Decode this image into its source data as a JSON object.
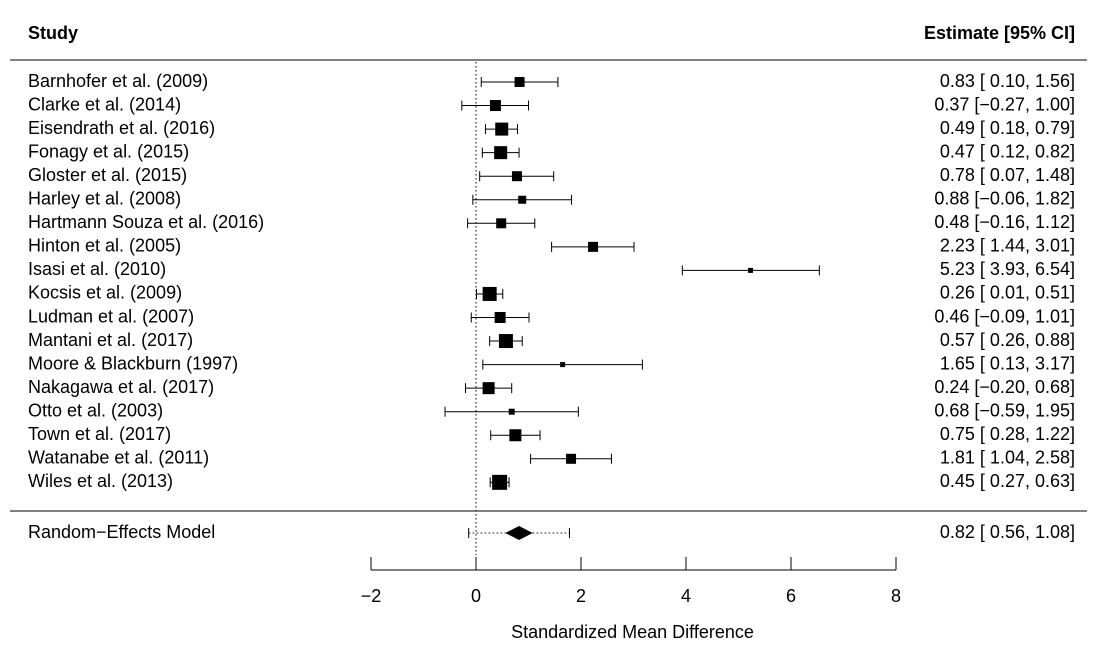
{
  "chart_data": {
    "type": "forest",
    "header": {
      "study": "Study",
      "estimate": "Estimate [95% CI]"
    },
    "xlabel": "Standardized Mean Difference",
    "xlim": [
      -2,
      8
    ],
    "xticks": [
      -2,
      0,
      2,
      4,
      6,
      8
    ],
    "xtick_labels": [
      "−2",
      "0",
      "2",
      "4",
      "6",
      "8"
    ],
    "reference_line": 0,
    "studies": [
      {
        "name": "Barnhofer et al. (2009)",
        "estimate": 0.83,
        "lower": 0.1,
        "upper": 1.56,
        "label": "0.83 [ 0.10, 1.56]",
        "marker_size": 10
      },
      {
        "name": "Clarke et al. (2014)",
        "estimate": 0.37,
        "lower": -0.27,
        "upper": 1.0,
        "label": "0.37 [−0.27, 1.00]",
        "marker_size": 11
      },
      {
        "name": "Eisendrath et al. (2016)",
        "estimate": 0.49,
        "lower": 0.18,
        "upper": 0.79,
        "label": "0.49 [ 0.18, 0.79]",
        "marker_size": 13
      },
      {
        "name": "Fonagy et al. (2015)",
        "estimate": 0.47,
        "lower": 0.12,
        "upper": 0.82,
        "label": "0.47 [ 0.12, 0.82]",
        "marker_size": 13
      },
      {
        "name": "Gloster et al. (2015)",
        "estimate": 0.78,
        "lower": 0.07,
        "upper": 1.48,
        "label": "0.78 [ 0.07, 1.48]",
        "marker_size": 10
      },
      {
        "name": "Harley et al. (2008)",
        "estimate": 0.88,
        "lower": -0.06,
        "upper": 1.82,
        "label": "0.88 [−0.06, 1.82]",
        "marker_size": 8
      },
      {
        "name": "Hartmann Souza et al. (2016)",
        "estimate": 0.48,
        "lower": -0.16,
        "upper": 1.12,
        "label": "0.48 [−0.16, 1.12]",
        "marker_size": 10
      },
      {
        "name": "Hinton et al. (2005)",
        "estimate": 2.23,
        "lower": 1.44,
        "upper": 3.01,
        "label": "2.23 [ 1.44, 3.01]",
        "marker_size": 10
      },
      {
        "name": "Isasi et al. (2010)",
        "estimate": 5.23,
        "lower": 3.93,
        "upper": 6.54,
        "label": "5.23 [ 3.93, 6.54]",
        "marker_size": 5
      },
      {
        "name": "Kocsis et al. (2009)",
        "estimate": 0.26,
        "lower": 0.01,
        "upper": 0.51,
        "label": "0.26 [ 0.01, 0.51]",
        "marker_size": 14
      },
      {
        "name": "Ludman et al. (2007)",
        "estimate": 0.46,
        "lower": -0.09,
        "upper": 1.01,
        "label": "0.46 [−0.09, 1.01]",
        "marker_size": 11
      },
      {
        "name": "Mantani et al. (2017)",
        "estimate": 0.57,
        "lower": 0.26,
        "upper": 0.88,
        "label": "0.57 [ 0.26, 0.88]",
        "marker_size": 14
      },
      {
        "name": "Moore & Blackburn (1997)",
        "estimate": 1.65,
        "lower": 0.13,
        "upper": 3.17,
        "label": "1.65 [ 0.13, 3.17]",
        "marker_size": 5
      },
      {
        "name": "Nakagawa et al. (2017)",
        "estimate": 0.24,
        "lower": -0.2,
        "upper": 0.68,
        "label": "0.24 [−0.20, 0.68]",
        "marker_size": 12
      },
      {
        "name": "Otto et al. (2003)",
        "estimate": 0.68,
        "lower": -0.59,
        "upper": 1.95,
        "label": "0.68 [−0.59, 1.95]",
        "marker_size": 6
      },
      {
        "name": "Town et al. (2017)",
        "estimate": 0.75,
        "lower": 0.28,
        "upper": 1.22,
        "label": "0.75 [ 0.28, 1.22]",
        "marker_size": 12
      },
      {
        "name": "Watanabe et al. (2011)",
        "estimate": 1.81,
        "lower": 1.04,
        "upper": 2.58,
        "label": "1.81 [ 1.04, 2.58]",
        "marker_size": 10
      },
      {
        "name": "Wiles et al. (2013)",
        "estimate": 0.45,
        "lower": 0.27,
        "upper": 0.63,
        "label": "0.45 [ 0.27, 0.63]",
        "marker_size": 15
      }
    ],
    "summary": {
      "name": "Random−Effects Model",
      "estimate": 0.82,
      "lower": 0.56,
      "upper": 1.08,
      "pi_lower": -0.14,
      "pi_upper": 1.78,
      "label": "0.82 [ 0.56, 1.08]"
    }
  }
}
